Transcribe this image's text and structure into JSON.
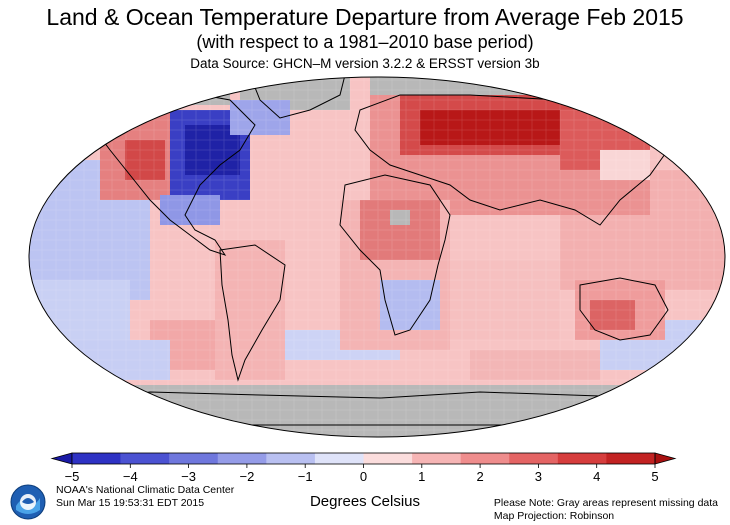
{
  "title": "Land & Ocean Temperature Departure from Average Feb 2015",
  "subtitle": "(with respect to a 1981–2010 base period)",
  "source": "Data Source: GHCN–M version 3.2.2 & ERSST version 3b",
  "colorbar": {
    "ticks": [
      "−5",
      "−4",
      "−3",
      "−2",
      "−1",
      "0",
      "1",
      "2",
      "3",
      "4",
      "5"
    ],
    "colors": [
      "#1a1aa6",
      "#2e32c4",
      "#4b52d2",
      "#6f77dd",
      "#959ce8",
      "#b9c0f1",
      "#dfe3f9",
      "#fbdddd",
      "#f6b5b5",
      "#ef8d8d",
      "#e46464",
      "#d63d3d",
      "#c22222",
      "#a81010"
    ],
    "units": "Degrees Celsius"
  },
  "footer_left": {
    "org": "NOAA's National Climatic Data Center",
    "date": "Sun Mar 15 19:53:31 EDT 2015",
    "logo_text": "NOAA"
  },
  "footer_right": {
    "note": "Please Note: Gray areas represent missing data",
    "projection": "Map Projection: Robinson"
  },
  "map": {
    "missing_color": "#b8b8b8",
    "land_outline_color": "#000000",
    "anomaly_regions": [
      {
        "region": "eastern-north-america",
        "anomaly": -4.5
      },
      {
        "region": "western-north-america",
        "anomaly": 2.5
      },
      {
        "region": "alaska",
        "anomaly": 2.0
      },
      {
        "region": "northern-eurasia",
        "anomaly": 4.0
      },
      {
        "region": "siberia",
        "anomaly": 3.5
      },
      {
        "region": "central-asia",
        "anomaly": 2.0
      },
      {
        "region": "north-africa-sahel",
        "anomaly": 2.0
      },
      {
        "region": "australia",
        "anomaly": 2.0
      },
      {
        "region": "south-america",
        "anomaly": 1.0
      },
      {
        "region": "southern-africa",
        "anomaly": -0.5
      },
      {
        "region": "north-pacific-west",
        "anomaly": -0.8
      },
      {
        "region": "southern-ocean",
        "anomaly": -0.5
      },
      {
        "region": "greenland",
        "anomaly": -2.0
      },
      {
        "region": "tropical-oceans",
        "anomaly": 0.5
      }
    ]
  }
}
